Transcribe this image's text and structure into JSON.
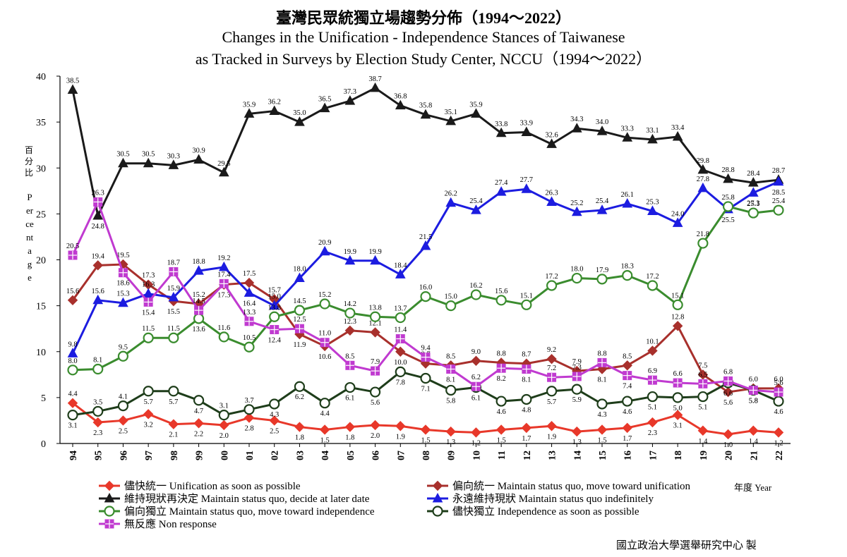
{
  "title_cn": "臺灣民眾統獨立場趨勢分佈（1994～2022）",
  "title_en_line1": "Changes in the Unification - Independence Stances of Taiwanese",
  "title_en_line2": "as Tracked in Surveys by Election Study Center, NCCU（1994～2022）",
  "credit": "國立政治大學選舉研究中心 製",
  "ylabel_cn": "百分比",
  "ylabel_en": "Percentage",
  "xlabel": "年度 Year",
  "chart_data": {
    "type": "line",
    "title": "Changes in the Unification - Independence Stances of Taiwanese as Tracked in Surveys by Election Study Center, NCCU（1994～2022）",
    "xlabel": "年度 Year",
    "ylabel": "百分比 Percentage",
    "ylim": [
      0,
      40
    ],
    "yticks": [
      0,
      5,
      10,
      15,
      20,
      25,
      30,
      35,
      40
    ],
    "grid": false,
    "legend_position": "bottom",
    "x": [
      "94",
      "95",
      "96",
      "97",
      "98",
      "99",
      "00",
      "01",
      "02",
      "03",
      "04",
      "05",
      "06",
      "07",
      "08",
      "09",
      "10",
      "11",
      "12",
      "13",
      "14",
      "15",
      "16",
      "17",
      "18",
      "19",
      "20",
      "21",
      "22"
    ],
    "series": [
      {
        "name": "儘快統一 Unification as soon as possible",
        "color": "#e8382a",
        "marker": "diamond",
        "values": [
          4.4,
          2.3,
          2.5,
          3.2,
          2.1,
          2.2,
          2.0,
          2.8,
          2.5,
          1.8,
          1.5,
          1.8,
          2.0,
          1.9,
          1.5,
          1.3,
          1.2,
          1.5,
          1.7,
          1.9,
          1.3,
          1.5,
          1.7,
          2.3,
          3.1,
          1.4,
          1.0,
          1.4,
          1.2
        ]
      },
      {
        "name": "偏向統一 Maintain status quo, move toward unification",
        "color": "#a8302c",
        "marker": "diamond",
        "values": [
          15.6,
          19.4,
          19.5,
          17.3,
          15.5,
          15.2,
          17.3,
          17.5,
          15.7,
          11.9,
          10.6,
          12.3,
          12.1,
          10.0,
          8.7,
          8.5,
          9.0,
          8.8,
          8.7,
          9.2,
          7.9,
          8.1,
          8.5,
          10.1,
          12.8,
          7.5,
          5.6,
          6.0,
          6.0
        ]
      },
      {
        "name": "維持現狀再決定 Maintain status quo, decide at later date",
        "color": "#1a1a1a",
        "marker": "triangle",
        "values": [
          38.5,
          24.8,
          30.5,
          30.5,
          30.3,
          30.9,
          29.5,
          35.9,
          36.2,
          35.0,
          36.5,
          37.3,
          38.7,
          36.8,
          35.8,
          35.1,
          35.9,
          33.8,
          33.9,
          32.6,
          34.3,
          34.0,
          33.3,
          33.1,
          33.4,
          29.8,
          28.8,
          28.4,
          28.7
        ]
      },
      {
        "name": "永遠維持現狀 Maintain status quo indefinitely",
        "color": "#1c1ce0",
        "marker": "triangle",
        "values": [
          9.8,
          15.6,
          15.3,
          16.3,
          15.9,
          18.8,
          19.2,
          16.4,
          15.0,
          18.0,
          20.9,
          19.9,
          19.9,
          18.4,
          21.5,
          26.2,
          25.4,
          27.4,
          27.7,
          26.3,
          25.2,
          25.4,
          26.1,
          25.3,
          24.0,
          27.8,
          25.5,
          27.3,
          28.5
        ]
      },
      {
        "name": "偏向獨立 Maintain status quo, move toward independence",
        "color": "#3a8c2e",
        "marker": "circle",
        "values": [
          8.0,
          8.1,
          9.5,
          11.5,
          11.5,
          13.6,
          11.6,
          10.5,
          13.8,
          14.5,
          15.2,
          14.2,
          13.8,
          13.7,
          16.0,
          15.0,
          16.2,
          15.6,
          15.1,
          17.2,
          18.0,
          17.9,
          18.3,
          17.2,
          15.1,
          21.8,
          25.8,
          25.1,
          25.4
        ]
      },
      {
        "name": "儘快獨立 Independence as soon as possible",
        "color": "#1e3d1a",
        "marker": "circle",
        "values": [
          3.1,
          3.5,
          4.1,
          5.7,
          5.7,
          4.7,
          3.1,
          3.7,
          4.3,
          6.2,
          4.4,
          6.1,
          5.6,
          7.8,
          7.1,
          5.8,
          6.1,
          4.6,
          4.8,
          5.7,
          5.9,
          4.3,
          4.6,
          5.1,
          5.0,
          5.1,
          6.6,
          5.8,
          4.6
        ]
      },
      {
        "name": "無反應 Non response",
        "color": "#c03ad0",
        "marker": "square",
        "values": [
          20.5,
          26.3,
          18.6,
          15.4,
          18.7,
          14.5,
          17.4,
          13.3,
          12.4,
          12.5,
          11.0,
          8.5,
          7.9,
          11.4,
          9.4,
          8.1,
          6.2,
          8.2,
          8.1,
          7.2,
          7.3,
          8.8,
          7.4,
          6.9,
          6.6,
          6.5,
          6.8,
          5.8,
          5.6
        ]
      }
    ]
  }
}
